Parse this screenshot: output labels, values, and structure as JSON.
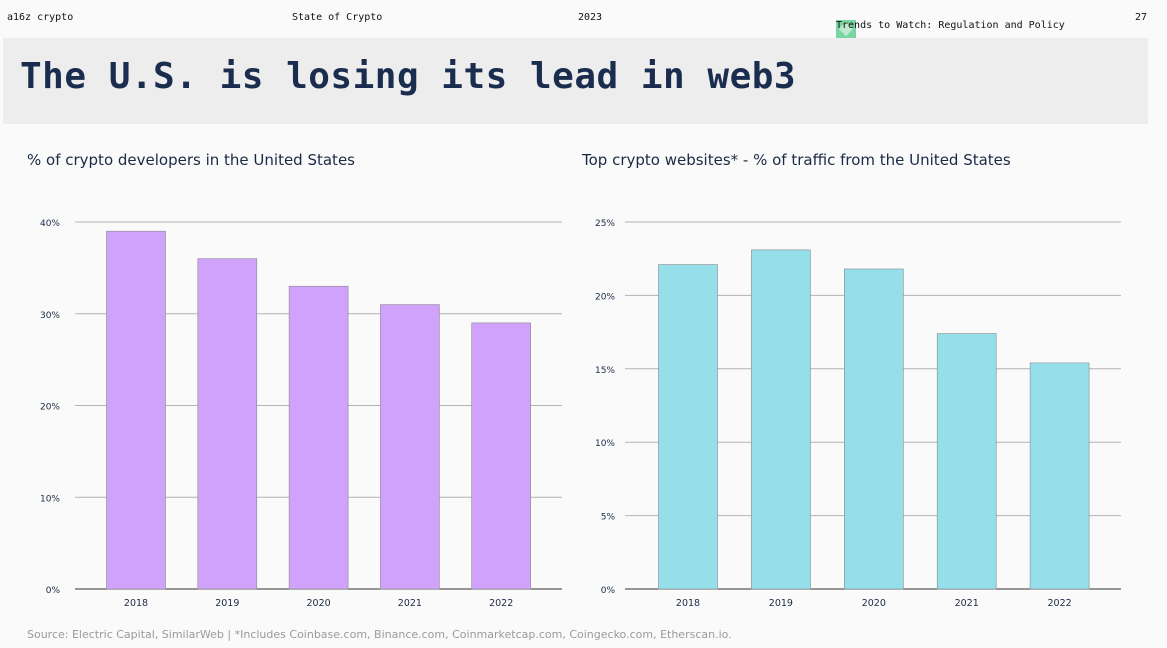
{
  "header": {
    "brand": "a16z crypto",
    "report": "State of Crypto",
    "year": "2023",
    "section": "Trends to Watch: Regulation and Policy",
    "section_icon": "diamond-icon",
    "page_number": "27"
  },
  "title": "The U.S. is losing its lead in web3",
  "footer": {
    "source": "Source: Electric Capital, SimilarWeb | *Includes Coinbase.com, Binance.com, Coinmarketcap.com, Coingecko.com, Etherscan.io."
  },
  "colors": {
    "accent_green": "#7ad6a0",
    "bar_purple": "#d0a2fb",
    "bar_cyan": "#94dfea",
    "title_navy": "#1b2d4f"
  },
  "chart_data": [
    {
      "type": "bar",
      "title": "% of crypto developers in the United States",
      "categories": [
        "2018",
        "2019",
        "2020",
        "2021",
        "2022"
      ],
      "values": [
        39,
        36,
        33,
        31,
        29
      ],
      "ylim": [
        0,
        40
      ],
      "yticks": [
        0,
        10,
        20,
        30,
        40
      ],
      "ytick_labels": [
        "0%",
        "10%",
        "20%",
        "30%",
        "40%"
      ],
      "grid": true,
      "xlabel": "",
      "ylabel": "",
      "color": "#d0a2fb"
    },
    {
      "type": "bar",
      "title": "Top crypto websites* - % of traffic from the United States",
      "categories": [
        "2018",
        "2019",
        "2020",
        "2021",
        "2022"
      ],
      "values": [
        22.1,
        23.1,
        21.8,
        17.4,
        15.4
      ],
      "ylim": [
        0,
        25
      ],
      "yticks": [
        0,
        5,
        10,
        15,
        20,
        25
      ],
      "ytick_labels": [
        "0%",
        "5%",
        "10%",
        "15%",
        "20%",
        "25%"
      ],
      "grid": true,
      "xlabel": "",
      "ylabel": "",
      "color": "#94dfea"
    }
  ]
}
